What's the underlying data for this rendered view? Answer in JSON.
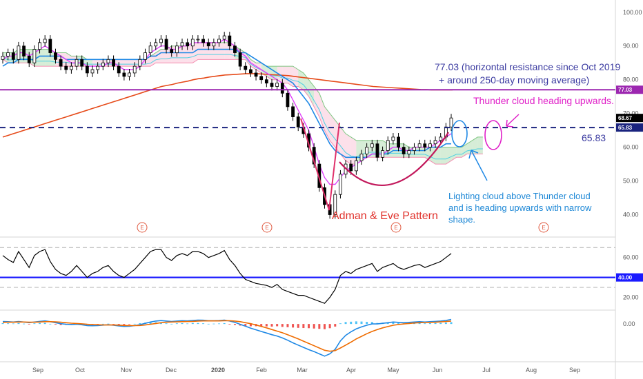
{
  "chart_data": [
    {
      "type": "line",
      "panel": "price",
      "title": "",
      "ylim": [
        35,
        102
      ],
      "yticks": [
        "100.00",
        "90.00",
        "80.00",
        "70.00",
        "60.00",
        "50.00",
        "40.00"
      ],
      "xticks": [
        "Sep",
        "Oct",
        "Nov",
        "Dec",
        "2020",
        "Feb",
        "Mar",
        "Apr",
        "May",
        "Jun",
        "Jul",
        "Aug",
        "Sep"
      ],
      "price_tags": {
        "last": "68.67",
        "support": "65.83",
        "resistance": "77.03"
      },
      "price_tag_colors": {
        "last": "#000000",
        "support": "#1a237e",
        "resistance": "#9c27b0"
      },
      "close": [
        87,
        88,
        86,
        90,
        87,
        85,
        89,
        91,
        92,
        88,
        86,
        84,
        83,
        84,
        86,
        84,
        82,
        83,
        84,
        85,
        86,
        84,
        82,
        81,
        82,
        84,
        86,
        88,
        90,
        91,
        92,
        89,
        88,
        90,
        91,
        90,
        92,
        92,
        91,
        90,
        91,
        92,
        93,
        90,
        88,
        84,
        83,
        82,
        81,
        80,
        79,
        78,
        79,
        76,
        72,
        69,
        66,
        64,
        60,
        55,
        48,
        43,
        40,
        46,
        52,
        55,
        53,
        56,
        58,
        60,
        61,
        57,
        59,
        62,
        63,
        60,
        58,
        59,
        60,
        61,
        60,
        61,
        62,
        63,
        66,
        68.67
      ],
      "ema_fast": [
        86,
        87,
        87,
        88,
        88,
        87,
        88,
        89,
        90,
        89,
        88,
        87,
        86,
        85,
        85,
        85,
        84,
        84,
        84,
        84,
        85,
        85,
        84,
        83,
        83,
        83,
        84,
        86,
        88,
        89,
        90,
        90,
        89,
        89,
        90,
        90,
        91,
        91,
        91,
        91,
        91,
        91,
        92,
        91,
        90,
        88,
        87,
        85,
        84,
        83,
        82,
        81,
        80,
        79,
        77,
        74,
        71,
        68,
        65,
        60,
        55,
        51,
        49,
        49,
        51,
        53,
        54,
        55,
        56,
        57,
        58,
        58,
        58,
        59,
        60,
        60,
        59,
        59,
        60,
        60,
        60,
        60,
        61,
        62,
        63,
        64
      ],
      "ema_slow": [
        84,
        85,
        85,
        86,
        86,
        86,
        86,
        87,
        87,
        87,
        87,
        87,
        86,
        86,
        86,
        86,
        86,
        86,
        86,
        86,
        86,
        86,
        86,
        86,
        86,
        86,
        86,
        86,
        87,
        87,
        88,
        88,
        88,
        88,
        88,
        88,
        88,
        89,
        89,
        89,
        89,
        89,
        89,
        89,
        89,
        88,
        88,
        87,
        86,
        85,
        84,
        83,
        82,
        81,
        80,
        79,
        77,
        75,
        73,
        70,
        67,
        64,
        61,
        59,
        58,
        57,
        57,
        57,
        57,
        57,
        58,
        58,
        58,
        58,
        59,
        59,
        59,
        59,
        59,
        59,
        59,
        60,
        60,
        60,
        61,
        61
      ],
      "ma250": [
        63,
        63.5,
        64,
        64.5,
        65,
        65.5,
        66,
        66.5,
        67,
        67.5,
        68,
        68.5,
        69,
        69.5,
        70,
        70.5,
        71,
        71.5,
        72,
        72.5,
        73,
        73.5,
        74,
        74.5,
        75,
        75.5,
        76,
        76.5,
        77,
        77.5,
        78,
        78.3,
        78.6,
        79,
        79.3,
        79.6,
        80,
        80.3,
        80.5,
        80.8,
        81,
        81.2,
        81.4,
        81.5,
        81.6,
        81.7,
        81.8,
        81.8,
        81.8,
        81.7,
        81.6,
        81.5,
        81.4,
        81.3,
        81.2,
        81,
        80.8,
        80.6,
        80.4,
        80.2,
        80,
        79.8,
        79.6,
        79.4,
        79.2,
        79,
        78.8,
        78.6,
        78.4,
        78.2,
        78,
        77.9,
        77.8,
        77.7,
        77.6,
        77.5,
        77.4,
        77.3,
        77.2,
        77.1,
        77.05,
        77.0,
        77.0,
        77.0,
        77.0,
        77.0
      ],
      "cloud_top": [
        88,
        88,
        88,
        89,
        89,
        89,
        89,
        89,
        89,
        89,
        88,
        88,
        88,
        87,
        87,
        87,
        86,
        86,
        86,
        86,
        86,
        86,
        86,
        86,
        86,
        86,
        86,
        86,
        87,
        88,
        89,
        89,
        90,
        90,
        90,
        90,
        91,
        91,
        91,
        91,
        91,
        91,
        91,
        91,
        90,
        89,
        88,
        86,
        85,
        85,
        84,
        84,
        84,
        84,
        84,
        84,
        83,
        82,
        80,
        78,
        76,
        72,
        70,
        68,
        66,
        64,
        63,
        62,
        62,
        62,
        62,
        62,
        62,
        61,
        61,
        61,
        61,
        60,
        60,
        60,
        60,
        60,
        60,
        60,
        60,
        60,
        60,
        60,
        61,
        62,
        63,
        63
      ],
      "cloud_bottom": [
        86,
        85,
        85,
        85,
        85,
        85,
        84,
        84,
        84,
        84,
        84,
        84,
        84,
        84,
        84,
        84,
        84,
        84,
        84,
        84,
        84,
        84,
        84,
        84,
        84,
        84,
        84,
        84,
        84,
        85,
        85,
        85,
        85,
        85,
        85,
        85,
        85,
        86,
        86,
        86,
        86,
        86,
        86,
        86,
        86,
        86,
        86,
        84,
        83,
        82,
        81,
        80,
        80,
        79,
        79,
        78,
        78,
        77,
        75,
        72,
        69,
        65,
        62,
        60,
        58,
        56,
        55,
        55,
        56,
        57,
        57,
        57,
        57,
        57,
        57,
        57,
        57,
        57,
        57,
        57,
        57,
        56,
        55,
        55,
        55,
        56,
        57,
        57,
        58,
        58,
        58,
        58
      ],
      "levels": {
        "resistance": 77.03,
        "support": 65.83
      }
    },
    {
      "type": "line",
      "panel": "rsi",
      "ylim": [
        10,
        75
      ],
      "yticks": [
        "60.00",
        "40.00",
        "20.00"
      ],
      "price_tags": {
        "level": "40.00"
      },
      "bands": [
        30,
        70
      ],
      "rsi": [
        62,
        58,
        55,
        66,
        58,
        50,
        62,
        66,
        68,
        56,
        48,
        44,
        42,
        46,
        52,
        46,
        40,
        44,
        46,
        50,
        52,
        46,
        42,
        40,
        44,
        48,
        54,
        60,
        66,
        68,
        68,
        60,
        57,
        62,
        64,
        62,
        66,
        66,
        64,
        60,
        62,
        64,
        67,
        58,
        52,
        44,
        38,
        36,
        34,
        33,
        32,
        30,
        33,
        28,
        26,
        24,
        22,
        22,
        20,
        18,
        16,
        14,
        20,
        28,
        42,
        46,
        44,
        48,
        50,
        52,
        54,
        46,
        50,
        52,
        54,
        50,
        48,
        50,
        52,
        53,
        50,
        52,
        54,
        56,
        60,
        64
      ]
    },
    {
      "type": "bar",
      "panel": "macd",
      "yticks": [
        "0.00"
      ],
      "histogram": [
        0.5,
        0.4,
        0.3,
        0.6,
        0.2,
        -0.3,
        0.4,
        0.6,
        0.7,
        0.1,
        -0.4,
        -0.7,
        -0.6,
        -0.3,
        0.2,
        -0.2,
        -0.6,
        -0.4,
        -0.2,
        0.1,
        0.2,
        -0.2,
        -0.5,
        -0.6,
        -0.3,
        0.1,
        0.5,
        0.8,
        1.0,
        1.1,
        1.0,
        0.4,
        0.1,
        0.4,
        0.5,
        0.3,
        0.6,
        0.6,
        0.4,
        0.1,
        0.2,
        0.3,
        0.5,
        -0.2,
        -0.6,
        -1.0,
        -1.2,
        -1.4,
        -1.4,
        -1.5,
        -1.5,
        -1.6,
        -1.4,
        -1.8,
        -2.0,
        -2.2,
        -2.4,
        -2.5,
        -2.6,
        -2.8,
        -3.0,
        -3.2,
        -2.6,
        -1.6,
        0.4,
        1.2,
        1.4,
        1.6,
        1.5,
        1.3,
        1.2,
        0.6,
        0.8,
        0.8,
        0.9,
        0.6,
        0.4,
        0.5,
        0.6,
        0.6,
        0.4,
        0.5,
        0.6,
        0.7,
        0.9,
        1.1
      ],
      "macd": [
        1.5,
        1.4,
        1.2,
        1.5,
        1.2,
        0.8,
        1.2,
        1.6,
        1.9,
        1.4,
        0.8,
        0.2,
        -0.2,
        -0.4,
        -0.2,
        -0.5,
        -1.0,
        -1.1,
        -1.0,
        -0.7,
        -0.5,
        -0.8,
        -1.2,
        -1.5,
        -1.4,
        -1.0,
        -0.4,
        0.4,
        1.2,
        1.8,
        2.1,
        1.8,
        1.5,
        1.8,
        2.0,
        1.9,
        2.2,
        2.4,
        2.3,
        2.0,
        2.0,
        2.1,
        2.4,
        1.8,
        1.0,
        -0.2,
        -1.4,
        -2.6,
        -3.6,
        -4.6,
        -5.6,
        -6.6,
        -7.4,
        -8.6,
        -10,
        -11.6,
        -13,
        -14.4,
        -15.8,
        -17,
        -18.4,
        -19.8,
        -18.4,
        -15.6,
        -10.4,
        -7.0,
        -4.8,
        -3.0,
        -1.8,
        -0.8,
        0.0,
        0.0,
        0.4,
        0.8,
        1.2,
        1.0,
        0.8,
        1.0,
        1.2,
        1.4,
        1.2,
        1.4,
        1.6,
        1.8,
        2.2,
        2.8
      ],
      "signal": [
        1.0,
        1.1,
        1.1,
        1.2,
        1.2,
        1.1,
        1.1,
        1.2,
        1.4,
        1.4,
        1.3,
        1.1,
        0.8,
        0.5,
        0.3,
        0.1,
        -0.2,
        -0.4,
        -0.5,
        -0.6,
        -0.6,
        -0.6,
        -0.7,
        -0.9,
        -1.0,
        -1.0,
        -0.9,
        -0.6,
        -0.2,
        0.3,
        0.8,
        1.1,
        1.2,
        1.3,
        1.4,
        1.5,
        1.6,
        1.8,
        1.9,
        1.9,
        1.9,
        1.9,
        2.0,
        2.0,
        1.8,
        1.4,
        0.8,
        0.2,
        -0.6,
        -1.5,
        -2.4,
        -3.4,
        -4.4,
        -5.4,
        -6.6,
        -7.9,
        -9.2,
        -10.6,
        -12,
        -13.4,
        -14.8,
        -16.2,
        -16.8,
        -16.4,
        -14.8,
        -13.0,
        -11.2,
        -9.2,
        -7.6,
        -6.0,
        -4.6,
        -3.4,
        -2.4,
        -1.6,
        -0.8,
        -0.3,
        0.0,
        0.3,
        0.6,
        0.8,
        0.9,
        1.0,
        1.1,
        1.3,
        1.5,
        1.8
      ]
    }
  ],
  "annotations": {
    "resistance_note_line1": "77.03 (horizontal resistance since Oct 2019",
    "resistance_note_line2": "+ around 250-day moving average)",
    "thunder_note": "Thunder cloud heading upwards.",
    "support_note": "65.83",
    "pattern_note": "Adman & Eve Pattern",
    "lightning_line1": "Lighting cloud above Thunder cloud",
    "lightning_line2": "and is heading upwards with narrow",
    "lightning_line3": "shape.",
    "earnings_marker": "E"
  },
  "colors": {
    "price": "#000000",
    "ema_fast": "#e040fb",
    "ema_slow": "#1e88e5",
    "ma250": "#e64a19",
    "cloud_bull": "#a5d6a7",
    "cloud_bear": "#f8bbd0",
    "resistance": "#9c27b0",
    "support": "#1a237e",
    "rsi_level": "#1a1aff",
    "macd": "#1e88e5",
    "signal": "#ef6c00",
    "hist_pos": "#4fc3f7",
    "hist_neg": "#ef5350"
  }
}
